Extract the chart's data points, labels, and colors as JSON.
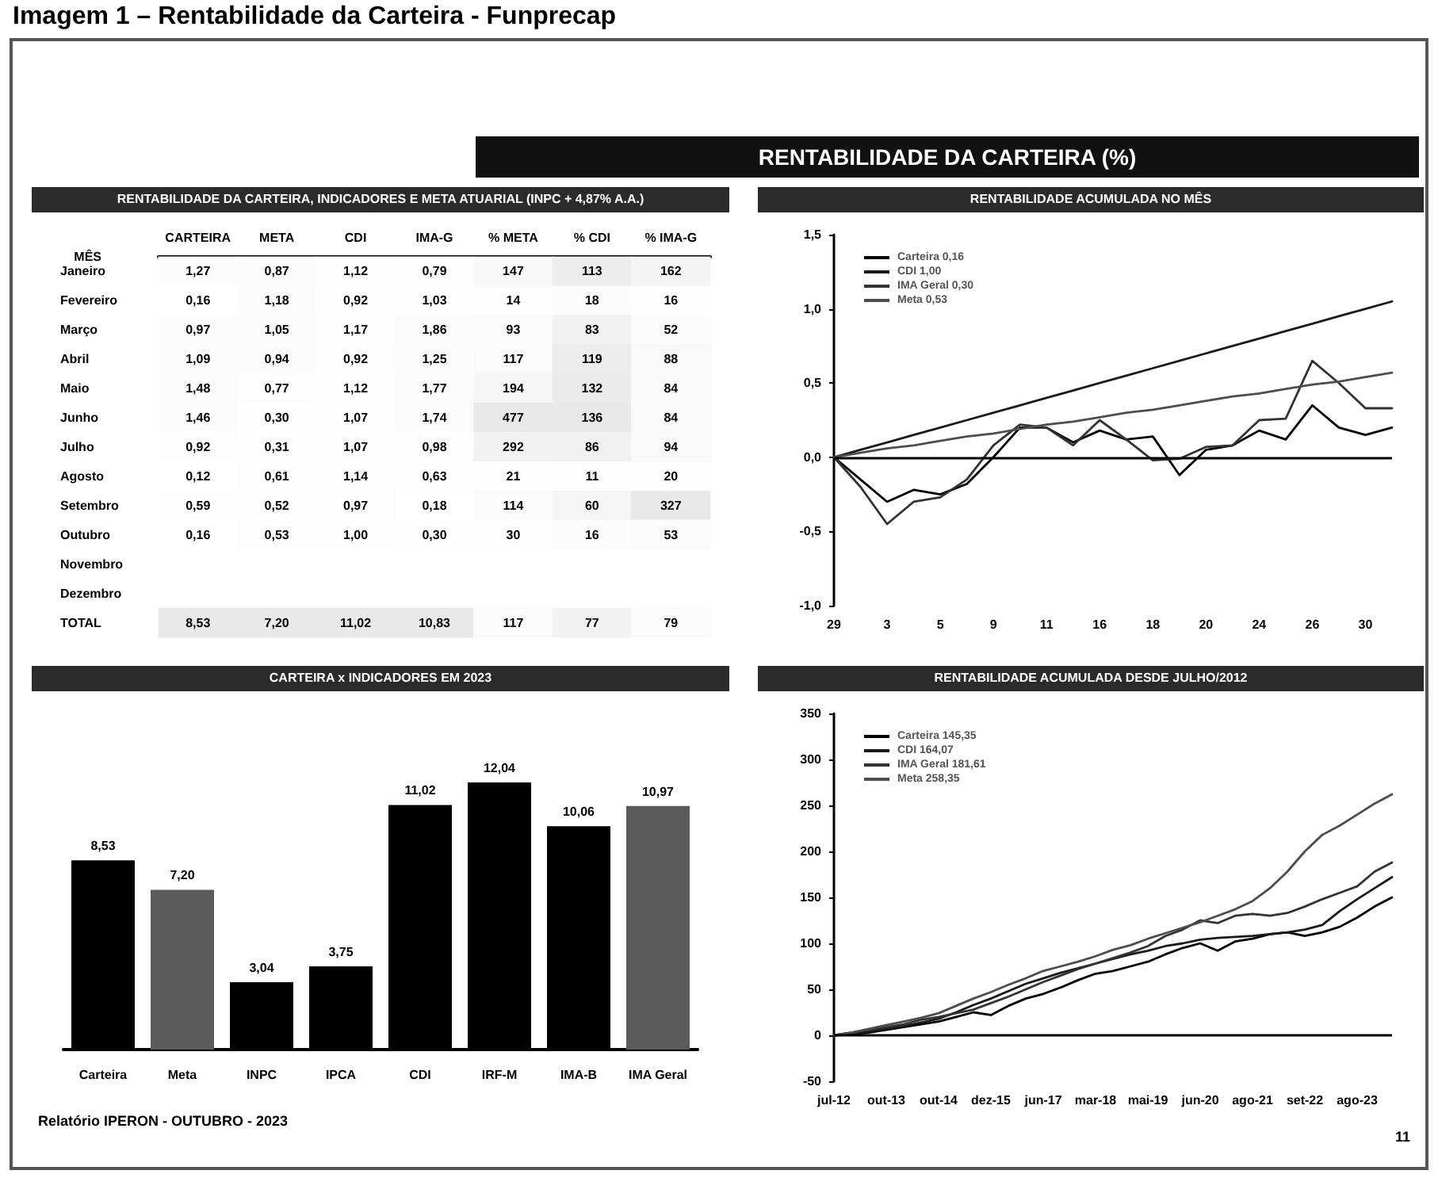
{
  "chart_data": [
    {
      "type": "heatmap",
      "title": "RENTABILIDADE DA CARTEIRA, INDICADORES E META ATUARIAL (INPC + 4,87% A.A.)",
      "annotations": [
        "Imagem 1 – Rentabilidade da Carteira - Funprecap",
        "RENTABILIDADE DA CARTEIRA (%)",
        "Relatório IPERON - OUTUBRO - 2023",
        "11"
      ],
      "xlabel": "MÊS",
      "categories": [
        "CARTEIRA",
        "META",
        "CDI",
        "IMA-G",
        "% META",
        "% CDI",
        "% IMA-G"
      ],
      "y_categories": [
        "Janeiro",
        "Fevereiro",
        "Março",
        "Abril",
        "Maio",
        "Junho",
        "Julho",
        "Agosto",
        "Setembro",
        "Outubro",
        "Novembro",
        "Dezembro",
        "TOTAL"
      ],
      "cells": [
        [
          1.27,
          0.87,
          1.12,
          0.79,
          147,
          113,
          162
        ],
        [
          0.16,
          1.18,
          0.92,
          1.03,
          14,
          18,
          16
        ],
        [
          0.97,
          1.05,
          1.17,
          1.86,
          93,
          83,
          52
        ],
        [
          1.09,
          0.94,
          0.92,
          1.25,
          117,
          119,
          88
        ],
        [
          1.48,
          0.77,
          1.12,
          1.77,
          194,
          132,
          84
        ],
        [
          1.46,
          0.3,
          1.07,
          1.74,
          477,
          136,
          84
        ],
        [
          0.92,
          0.31,
          1.07,
          0.98,
          292,
          86,
          94
        ],
        [
          0.12,
          0.61,
          1.14,
          0.63,
          21,
          11,
          20
        ],
        [
          0.59,
          0.52,
          0.97,
          0.18,
          114,
          60,
          327
        ],
        [
          0.16,
          0.53,
          1.0,
          0.3,
          30,
          16,
          53
        ],
        [
          null,
          null,
          null,
          null,
          null,
          null,
          null
        ],
        [
          null,
          null,
          null,
          null,
          null,
          null,
          null
        ],
        [
          8.53,
          7.2,
          11.02,
          10.83,
          117,
          77,
          79
        ]
      ],
      "cell_labels": [
        [
          "1,27",
          "0,87",
          "1,12",
          "0,79",
          "147",
          "113",
          "162"
        ],
        [
          "0,16",
          "1,18",
          "0,92",
          "1,03",
          "14",
          "18",
          "16"
        ],
        [
          "0,97",
          "1,05",
          "1,17",
          "1,86",
          "93",
          "83",
          "52"
        ],
        [
          "1,09",
          "0,94",
          "0,92",
          "1,25",
          "117",
          "119",
          "88"
        ],
        [
          "1,48",
          "0,77",
          "1,12",
          "1,77",
          "194",
          "132",
          "84"
        ],
        [
          "1,46",
          "0,30",
          "1,07",
          "1,74",
          "477",
          "136",
          "84"
        ],
        [
          "0,92",
          "0,31",
          "1,07",
          "0,98",
          "292",
          "86",
          "94"
        ],
        [
          "0,12",
          "0,61",
          "1,14",
          "0,63",
          "21",
          "11",
          "20"
        ],
        [
          "0,59",
          "0,52",
          "0,97",
          "0,18",
          "114",
          "60",
          "327"
        ],
        [
          "0,16",
          "0,53",
          "1,00",
          "0,30",
          "30",
          "16",
          "53"
        ],
        [
          null,
          null,
          null,
          null,
          null,
          null,
          null
        ],
        [
          null,
          null,
          null,
          null,
          null,
          null,
          null
        ],
        [
          "8,53",
          "7,20",
          "11,02",
          "10,83",
          "117",
          "77",
          "79"
        ]
      ]
    },
    {
      "type": "line",
      "title": "RENTABILIDADE ACUMULADA NO MÊS",
      "categories": [
        "29",
        null,
        "3",
        null,
        "5",
        null,
        "9",
        null,
        "11",
        null,
        "16",
        null,
        "18",
        null,
        "20",
        null,
        "24",
        null,
        "26",
        null,
        "30",
        null
      ],
      "series": [
        {
          "name": "Carteira 0,16",
          "color": "#000000",
          "values": [
            0,
            -0.15,
            -0.3,
            -0.22,
            -0.25,
            -0.18,
            0.0,
            0.2,
            0.2,
            0.1,
            0.18,
            0.12,
            0.14,
            -0.12,
            0.05,
            0.08,
            0.18,
            0.12,
            0.35,
            0.2,
            0.15,
            0.2
          ]
        },
        {
          "name": "CDI 1,00",
          "color": "#1a1a1a",
          "values": [
            0,
            0.05,
            0.1,
            0.15,
            0.2,
            0.25,
            0.3,
            0.35,
            0.4,
            0.45,
            0.5,
            0.55,
            0.6,
            0.65,
            0.7,
            0.75,
            0.8,
            0.85,
            0.9,
            0.95,
            1.0,
            1.05
          ]
        },
        {
          "name": "IMA Geral 0,30",
          "color": "#333333",
          "values": [
            0,
            -0.2,
            -0.45,
            -0.3,
            -0.27,
            -0.15,
            0.08,
            0.22,
            0.2,
            0.08,
            0.25,
            0.12,
            -0.02,
            -0.01,
            0.07,
            0.08,
            0.25,
            0.26,
            0.65,
            0.5,
            0.33,
            0.33
          ]
        },
        {
          "name": "Meta 0,53",
          "color": "#4d4d4d",
          "values": [
            0,
            0.03,
            0.06,
            0.08,
            0.11,
            0.14,
            0.16,
            0.19,
            0.22,
            0.24,
            0.27,
            0.3,
            0.32,
            0.35,
            0.38,
            0.41,
            0.43,
            0.46,
            0.49,
            0.51,
            0.54,
            0.57
          ]
        }
      ],
      "ylim": [
        -1,
        1.5
      ],
      "yticks": [
        {
          "value": -1,
          "label": "-1,0"
        },
        {
          "value": -0.5,
          "label": "-0,5"
        },
        {
          "value": 0,
          "label": "0,0"
        },
        {
          "value": 0.5,
          "label": "0,5"
        },
        {
          "value": 1,
          "label": "1,0"
        },
        {
          "value": 1.5,
          "label": "1,5"
        }
      ],
      "ref_lines": [
        {
          "axis": "y",
          "value": 0,
          "label": null
        }
      ],
      "legend": "top left",
      "marker": "none"
    },
    {
      "type": "bar",
      "title": "CARTEIRA x INDICADORES EM 2023",
      "categories": [
        "Carteira",
        "Meta",
        "INPC",
        "IPCA",
        "CDI",
        "IRF-M",
        "IMA-B",
        "IMA Geral"
      ],
      "values": [
        8.53,
        7.2,
        3.04,
        3.75,
        11.02,
        12.04,
        10.06,
        10.97
      ],
      "colors": [
        "#000000",
        "#5a5a5a",
        "#000000",
        "#000000",
        "#000000",
        "#000000",
        "#000000",
        "#5a5a5a"
      ],
      "value_labels": [
        "8,53",
        "7,20",
        "3,04",
        "3,75",
        "11,02",
        "12,04",
        "10,06",
        "10,97"
      ]
    },
    {
      "type": "line",
      "title": "RENTABILIDADE ACUMULADA DESDE JULHO/2012",
      "categories": [
        "jul-12",
        null,
        null,
        "out-13",
        null,
        null,
        "out-14",
        null,
        null,
        "dez-15",
        null,
        null,
        "jun-17",
        null,
        null,
        "mar-18",
        null,
        null,
        "mai-19",
        null,
        null,
        "jun-20",
        null,
        null,
        "ago-21",
        null,
        null,
        "set-22",
        null,
        null,
        "ago-23",
        null,
        null
      ],
      "series": [
        {
          "name": "Carteira 145,35",
          "color": "#000000",
          "values": [
            0,
            1,
            3,
            6,
            9,
            12,
            15,
            20,
            25,
            22,
            32,
            40,
            45,
            52,
            60,
            67,
            70,
            75,
            80,
            88,
            95,
            100,
            92,
            102,
            105,
            110,
            112,
            108,
            112,
            118,
            128,
            140,
            150
          ]
        },
        {
          "name": "CDI 164,07",
          "color": "#1a1a1a",
          "values": [
            0,
            2,
            4,
            7,
            10,
            14,
            18,
            25,
            33,
            40,
            48,
            56,
            62,
            68,
            73,
            78,
            83,
            88,
            92,
            97,
            100,
            104,
            106,
            107,
            108,
            110,
            112,
            115,
            120,
            135,
            148,
            160,
            172
          ]
        },
        {
          "name": "IMA Geral 181,61",
          "color": "#333333",
          "values": [
            0,
            3,
            6,
            9,
            12,
            17,
            20,
            24,
            28,
            35,
            42,
            50,
            58,
            65,
            72,
            78,
            84,
            90,
            97,
            108,
            115,
            125,
            122,
            130,
            132,
            130,
            133,
            140,
            148,
            155,
            162,
            178,
            188
          ]
        },
        {
          "name": "Meta 258,35",
          "color": "#4d4d4d",
          "values": [
            0,
            3,
            7,
            11,
            15,
            19,
            24,
            32,
            40,
            47,
            55,
            62,
            70,
            75,
            80,
            86,
            93,
            98,
            105,
            111,
            117,
            123,
            130,
            137,
            146,
            160,
            178,
            200,
            218,
            228,
            240,
            252,
            262
          ]
        }
      ],
      "ylim": [
        -50,
        350
      ],
      "yticks": [
        -50,
        0,
        50,
        100,
        150,
        200,
        250,
        300,
        350
      ],
      "ref_lines": [
        {
          "axis": "y",
          "value": 0,
          "label": null
        }
      ],
      "legend": "top left",
      "marker": "none"
    }
  ]
}
